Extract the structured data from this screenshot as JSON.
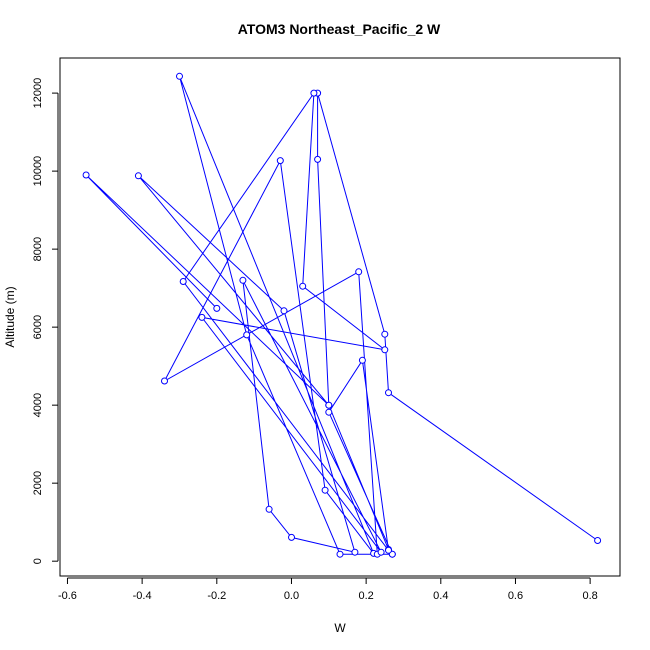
{
  "chart_data": {
    "type": "line",
    "title": "ATOM3 Northeast_Pacific_2 W",
    "xlabel": "W",
    "ylabel": "Altitude (m)",
    "xlim": [
      -0.62,
      0.88
    ],
    "ylim": [
      -380,
      12900
    ],
    "x_ticks": [
      -0.6,
      -0.4,
      -0.2,
      0.0,
      0.2,
      0.4,
      0.6,
      0.8
    ],
    "x_tick_labels": [
      "-0.6",
      "-0.4",
      "-0.2",
      "0.0",
      "0.2",
      "0.4",
      "0.6",
      "0.8"
    ],
    "y_ticks": [
      0,
      2000,
      4000,
      6000,
      8000,
      10000,
      12000
    ],
    "y_tick_labels": [
      "0",
      "2000",
      "4000",
      "6000",
      "8000",
      "10000",
      "12000"
    ],
    "grid": false,
    "marker": "open-circle",
    "series": [
      {
        "color": "#0000ff",
        "x": [
          0.82,
          0.26,
          0.25,
          0.07,
          0.07,
          0.1,
          0.26,
          0.27,
          0.13,
          -0.12,
          -0.3,
          0.22,
          0.09,
          -0.03,
          -0.34,
          0.18,
          0.23,
          0.27,
          0.1,
          0.19,
          0.26,
          -0.29,
          0.06,
          0.03,
          0.25,
          -0.24,
          0.24,
          -0.13,
          -0.06,
          0.0,
          0.17,
          -0.02,
          -0.41,
          0.1,
          -0.55,
          -0.2
        ],
        "y": [
          530,
          4320,
          5820,
          12000,
          10300,
          4000,
          300,
          180,
          180,
          5800,
          12430,
          200,
          1820,
          10270,
          4620,
          7420,
          180,
          180,
          3820,
          5150,
          280,
          7170,
          12000,
          7050,
          5420,
          6250,
          230,
          7200,
          1330,
          610,
          230,
          6420,
          9880,
          4000,
          9900,
          6480
        ]
      }
    ]
  }
}
